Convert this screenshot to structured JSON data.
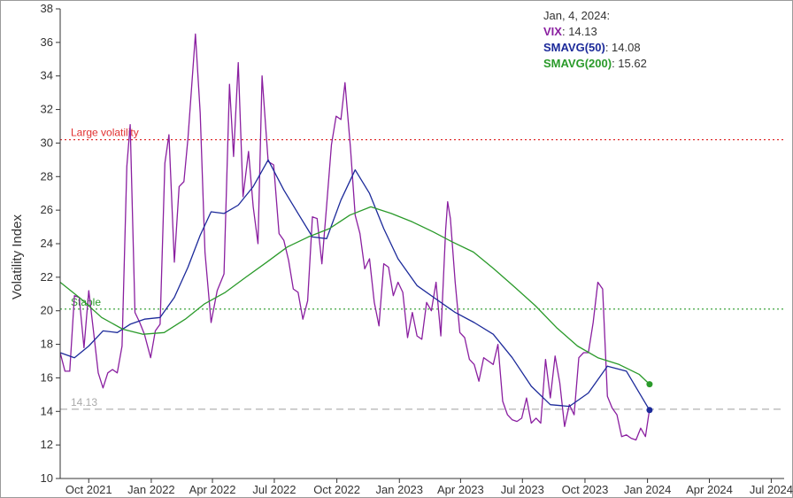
{
  "chart_data": {
    "type": "line",
    "ylabel": "Volatility Index",
    "ylim": [
      10,
      38
    ],
    "yticks": [
      10,
      12,
      14,
      16,
      18,
      20,
      22,
      24,
      26,
      28,
      30,
      32,
      34,
      36,
      38
    ],
    "xlim": [
      "2021-08-20",
      "2024-07-20"
    ],
    "xticks": [
      {
        "date": "2021-10-01",
        "label": "Oct 2021"
      },
      {
        "date": "2022-01-01",
        "label": "Jan 2022"
      },
      {
        "date": "2022-04-01",
        "label": "Apr 2022"
      },
      {
        "date": "2022-07-01",
        "label": "Jul 2022"
      },
      {
        "date": "2022-10-01",
        "label": "Oct 2022"
      },
      {
        "date": "2023-01-01",
        "label": "Jan 2023"
      },
      {
        "date": "2023-04-01",
        "label": "Apr 2023"
      },
      {
        "date": "2023-07-01",
        "label": "Jul 2023"
      },
      {
        "date": "2023-10-01",
        "label": "Oct 2023"
      },
      {
        "date": "2024-01-01",
        "label": "Jan 2024"
      },
      {
        "date": "2024-04-01",
        "label": "Apr 2024"
      },
      {
        "date": "2024-07-01",
        "label": "Jul 2024"
      }
    ],
    "reference_lines": [
      {
        "label": "Large volatility",
        "y": 30.2,
        "color": "#e03030",
        "style": "dotted"
      },
      {
        "label": "Stable",
        "y": 20.1,
        "color": "#2a9a2a",
        "style": "dotted"
      },
      {
        "label": "14.13",
        "y": 14.13,
        "color": "#aaaaaa",
        "style": "dashed"
      }
    ],
    "series": [
      {
        "name": "VIX",
        "color": "#8a1fa0",
        "points": [
          [
            "2021-08-20",
            17.5
          ],
          [
            "2021-08-27",
            16.4
          ],
          [
            "2021-09-03",
            16.4
          ],
          [
            "2021-09-10",
            20.9
          ],
          [
            "2021-09-17",
            20.8
          ],
          [
            "2021-09-24",
            17.8
          ],
          [
            "2021-10-01",
            21.2
          ],
          [
            "2021-10-08",
            18.8
          ],
          [
            "2021-10-15",
            16.3
          ],
          [
            "2021-10-22",
            15.4
          ],
          [
            "2021-10-29",
            16.3
          ],
          [
            "2021-11-05",
            16.5
          ],
          [
            "2021-11-12",
            16.3
          ],
          [
            "2021-11-19",
            17.9
          ],
          [
            "2021-11-26",
            28.6
          ],
          [
            "2021-12-01",
            31.1
          ],
          [
            "2021-12-08",
            19.9
          ],
          [
            "2021-12-15",
            19.3
          ],
          [
            "2021-12-22",
            18.6
          ],
          [
            "2021-12-31",
            17.2
          ],
          [
            "2022-01-07",
            18.8
          ],
          [
            "2022-01-14",
            19.2
          ],
          [
            "2022-01-21",
            28.8
          ],
          [
            "2022-01-27",
            30.5
          ],
          [
            "2022-02-04",
            22.9
          ],
          [
            "2022-02-11",
            27.4
          ],
          [
            "2022-02-18",
            27.7
          ],
          [
            "2022-02-24",
            30.3
          ],
          [
            "2022-03-07",
            36.5
          ],
          [
            "2022-03-14",
            31.8
          ],
          [
            "2022-03-21",
            23.5
          ],
          [
            "2022-03-30",
            19.3
          ],
          [
            "2022-04-08",
            21.2
          ],
          [
            "2022-04-18",
            22.2
          ],
          [
            "2022-04-26",
            33.5
          ],
          [
            "2022-05-02",
            29.2
          ],
          [
            "2022-05-09",
            34.8
          ],
          [
            "2022-05-16",
            26.8
          ],
          [
            "2022-05-24",
            29.5
          ],
          [
            "2022-05-31",
            26.2
          ],
          [
            "2022-06-07",
            24.0
          ],
          [
            "2022-06-13",
            34.0
          ],
          [
            "2022-06-22",
            28.9
          ],
          [
            "2022-06-30",
            28.7
          ],
          [
            "2022-07-08",
            24.6
          ],
          [
            "2022-07-15",
            24.2
          ],
          [
            "2022-07-22",
            23.0
          ],
          [
            "2022-07-29",
            21.3
          ],
          [
            "2022-08-05",
            21.1
          ],
          [
            "2022-08-12",
            19.5
          ],
          [
            "2022-08-19",
            20.6
          ],
          [
            "2022-08-26",
            25.6
          ],
          [
            "2022-09-02",
            25.5
          ],
          [
            "2022-09-09",
            22.8
          ],
          [
            "2022-09-16",
            26.3
          ],
          [
            "2022-09-23",
            29.9
          ],
          [
            "2022-09-30",
            31.6
          ],
          [
            "2022-10-07",
            31.4
          ],
          [
            "2022-10-13",
            33.6
          ],
          [
            "2022-10-21",
            29.7
          ],
          [
            "2022-10-28",
            25.7
          ],
          [
            "2022-11-04",
            24.6
          ],
          [
            "2022-11-11",
            22.5
          ],
          [
            "2022-11-18",
            23.1
          ],
          [
            "2022-11-25",
            20.5
          ],
          [
            "2022-12-02",
            19.1
          ],
          [
            "2022-12-09",
            22.8
          ],
          [
            "2022-12-16",
            22.6
          ],
          [
            "2022-12-23",
            20.9
          ],
          [
            "2022-12-30",
            21.7
          ],
          [
            "2023-01-06",
            21.1
          ],
          [
            "2023-01-13",
            18.4
          ],
          [
            "2023-01-20",
            19.9
          ],
          [
            "2023-01-27",
            18.5
          ],
          [
            "2023-02-03",
            18.3
          ],
          [
            "2023-02-10",
            20.5
          ],
          [
            "2023-02-17",
            20.0
          ],
          [
            "2023-02-24",
            21.7
          ],
          [
            "2023-03-03",
            18.5
          ],
          [
            "2023-03-10",
            24.8
          ],
          [
            "2023-03-13",
            26.5
          ],
          [
            "2023-03-17",
            25.5
          ],
          [
            "2023-03-24",
            21.7
          ],
          [
            "2023-03-31",
            18.7
          ],
          [
            "2023-04-07",
            18.4
          ],
          [
            "2023-04-14",
            17.1
          ],
          [
            "2023-04-21",
            16.8
          ],
          [
            "2023-04-28",
            15.8
          ],
          [
            "2023-05-05",
            17.2
          ],
          [
            "2023-05-12",
            17.0
          ],
          [
            "2023-05-19",
            16.8
          ],
          [
            "2023-05-26",
            18.0
          ],
          [
            "2023-06-02",
            14.6
          ],
          [
            "2023-06-09",
            13.8
          ],
          [
            "2023-06-16",
            13.5
          ],
          [
            "2023-06-23",
            13.4
          ],
          [
            "2023-06-30",
            13.6
          ],
          [
            "2023-07-07",
            14.8
          ],
          [
            "2023-07-14",
            13.3
          ],
          [
            "2023-07-21",
            13.6
          ],
          [
            "2023-07-28",
            13.3
          ],
          [
            "2023-08-04",
            17.1
          ],
          [
            "2023-08-11",
            14.8
          ],
          [
            "2023-08-18",
            17.3
          ],
          [
            "2023-08-25",
            15.7
          ],
          [
            "2023-09-01",
            13.1
          ],
          [
            "2023-09-08",
            14.4
          ],
          [
            "2023-09-15",
            13.8
          ],
          [
            "2023-09-22",
            17.2
          ],
          [
            "2023-09-29",
            17.5
          ],
          [
            "2023-10-06",
            17.5
          ],
          [
            "2023-10-13",
            19.3
          ],
          [
            "2023-10-20",
            21.7
          ],
          [
            "2023-10-27",
            21.3
          ],
          [
            "2023-11-03",
            14.9
          ],
          [
            "2023-11-10",
            14.2
          ],
          [
            "2023-11-17",
            13.8
          ],
          [
            "2023-11-24",
            12.5
          ],
          [
            "2023-12-01",
            12.6
          ],
          [
            "2023-12-08",
            12.4
          ],
          [
            "2023-12-15",
            12.3
          ],
          [
            "2023-12-22",
            13.0
          ],
          [
            "2023-12-29",
            12.5
          ],
          [
            "2024-01-04",
            14.13
          ]
        ]
      },
      {
        "name": "SMAVG(50)",
        "color": "#1c2a9a",
        "points": [
          [
            "2021-08-20",
            17.5
          ],
          [
            "2021-09-10",
            17.2
          ],
          [
            "2021-10-01",
            17.9
          ],
          [
            "2021-10-22",
            18.8
          ],
          [
            "2021-11-12",
            18.7
          ],
          [
            "2021-12-01",
            19.2
          ],
          [
            "2021-12-22",
            19.5
          ],
          [
            "2022-01-14",
            19.6
          ],
          [
            "2022-02-04",
            20.8
          ],
          [
            "2022-02-24",
            22.6
          ],
          [
            "2022-03-14",
            24.5
          ],
          [
            "2022-03-30",
            25.9
          ],
          [
            "2022-04-18",
            25.8
          ],
          [
            "2022-05-09",
            26.3
          ],
          [
            "2022-05-31",
            27.4
          ],
          [
            "2022-06-22",
            29.0
          ],
          [
            "2022-07-15",
            27.2
          ],
          [
            "2022-08-05",
            25.8
          ],
          [
            "2022-08-26",
            24.4
          ],
          [
            "2022-09-16",
            24.3
          ],
          [
            "2022-10-07",
            26.6
          ],
          [
            "2022-10-28",
            28.4
          ],
          [
            "2022-11-18",
            27.0
          ],
          [
            "2022-12-09",
            24.9
          ],
          [
            "2022-12-30",
            23.1
          ],
          [
            "2023-01-27",
            21.5
          ],
          [
            "2023-02-24",
            20.7
          ],
          [
            "2023-03-24",
            19.9
          ],
          [
            "2023-04-21",
            19.3
          ],
          [
            "2023-05-19",
            18.6
          ],
          [
            "2023-06-16",
            17.2
          ],
          [
            "2023-07-14",
            15.5
          ],
          [
            "2023-08-11",
            14.4
          ],
          [
            "2023-09-08",
            14.3
          ],
          [
            "2023-10-06",
            15.1
          ],
          [
            "2023-11-03",
            16.7
          ],
          [
            "2023-12-01",
            16.4
          ],
          [
            "2024-01-04",
            14.08
          ]
        ]
      },
      {
        "name": "SMAVG(200)",
        "color": "#2a9a2a",
        "points": [
          [
            "2021-08-20",
            21.7
          ],
          [
            "2021-09-20",
            20.7
          ],
          [
            "2021-10-20",
            19.6
          ],
          [
            "2021-11-20",
            18.9
          ],
          [
            "2021-12-20",
            18.6
          ],
          [
            "2022-01-20",
            18.7
          ],
          [
            "2022-02-20",
            19.5
          ],
          [
            "2022-03-20",
            20.4
          ],
          [
            "2022-04-20",
            21.1
          ],
          [
            "2022-05-20",
            22.0
          ],
          [
            "2022-06-20",
            22.9
          ],
          [
            "2022-07-20",
            23.8
          ],
          [
            "2022-08-20",
            24.4
          ],
          [
            "2022-09-20",
            24.9
          ],
          [
            "2022-10-20",
            25.7
          ],
          [
            "2022-11-20",
            26.2
          ],
          [
            "2022-12-20",
            25.8
          ],
          [
            "2023-01-20",
            25.3
          ],
          [
            "2023-02-20",
            24.7
          ],
          [
            "2023-03-20",
            24.1
          ],
          [
            "2023-04-20",
            23.5
          ],
          [
            "2023-05-20",
            22.5
          ],
          [
            "2023-06-20",
            21.4
          ],
          [
            "2023-07-20",
            20.3
          ],
          [
            "2023-08-20",
            19.0
          ],
          [
            "2023-09-20",
            17.9
          ],
          [
            "2023-10-20",
            17.2
          ],
          [
            "2023-11-20",
            16.8
          ],
          [
            "2023-12-20",
            16.2
          ],
          [
            "2024-01-04",
            15.62
          ]
        ]
      }
    ],
    "tooltip": {
      "date": "Jan, 4, 2024:",
      "entries": [
        {
          "name": "VIX",
          "value": "14.13",
          "color": "#8a1fa0"
        },
        {
          "name": "SMAVG(50)",
          "value": "14.08",
          "color": "#1c2a9a"
        },
        {
          "name": "SMAVG(200)",
          "value": "15.62",
          "color": "#2a9a2a"
        }
      ]
    }
  }
}
